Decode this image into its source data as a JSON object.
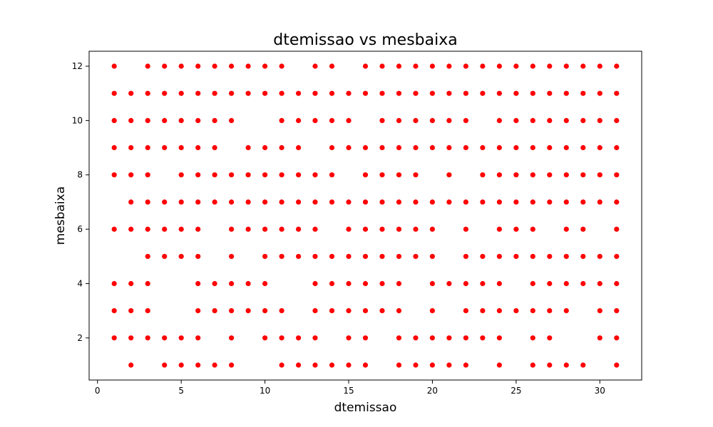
{
  "chart_data": {
    "type": "scatter",
    "title": "dtemissao vs mesbaixa",
    "xlabel": "dtemissao",
    "ylabel": "mesbaixa",
    "xlim": [
      -0.5,
      32.5
    ],
    "ylim": [
      0.45,
      12.55
    ],
    "xticks": [
      0,
      5,
      10,
      15,
      20,
      25,
      30
    ],
    "yticks": [
      2,
      4,
      6,
      8,
      10,
      12
    ],
    "grid": false,
    "marker_color": "#ff0000",
    "rows": [
      {
        "y": 12,
        "x": [
          1,
          3,
          4,
          5,
          6,
          7,
          8,
          9,
          10,
          11,
          13,
          14,
          16,
          17,
          18,
          19,
          20,
          21,
          22,
          23,
          24,
          25,
          26,
          27,
          28,
          29,
          30,
          31
        ]
      },
      {
        "y": 11,
        "x": [
          1,
          2,
          3,
          4,
          5,
          6,
          7,
          8,
          9,
          10,
          11,
          12,
          13,
          14,
          15,
          16,
          17,
          18,
          19,
          20,
          21,
          22,
          23,
          24,
          25,
          26,
          27,
          28,
          29,
          30,
          31
        ]
      },
      {
        "y": 10,
        "x": [
          1,
          2,
          3,
          4,
          5,
          6,
          7,
          8,
          11,
          12,
          13,
          14,
          15,
          17,
          18,
          19,
          20,
          21,
          22,
          24,
          25,
          26,
          27,
          28,
          29,
          30,
          31
        ]
      },
      {
        "y": 9,
        "x": [
          1,
          2,
          3,
          4,
          5,
          6,
          7,
          9,
          10,
          11,
          12,
          14,
          15,
          16,
          17,
          18,
          19,
          20,
          21,
          22,
          23,
          24,
          25,
          26,
          27,
          28,
          29,
          30,
          31
        ]
      },
      {
        "y": 8,
        "x": [
          1,
          2,
          3,
          5,
          6,
          7,
          8,
          9,
          10,
          11,
          12,
          13,
          14,
          16,
          17,
          18,
          19,
          21,
          23,
          24,
          25,
          26,
          27,
          28,
          29,
          30,
          31
        ]
      },
      {
        "y": 7,
        "x": [
          2,
          3,
          4,
          5,
          6,
          7,
          8,
          9,
          10,
          11,
          12,
          13,
          14,
          15,
          16,
          17,
          18,
          19,
          20,
          21,
          22,
          23,
          24,
          25,
          26,
          27,
          28,
          29,
          30,
          31
        ]
      },
      {
        "y": 6,
        "x": [
          1,
          2,
          3,
          4,
          5,
          6,
          8,
          9,
          10,
          11,
          12,
          13,
          15,
          16,
          17,
          18,
          19,
          20,
          22,
          24,
          25,
          26,
          28,
          29,
          31
        ]
      },
      {
        "y": 5,
        "x": [
          3,
          4,
          5,
          6,
          8,
          10,
          11,
          12,
          13,
          14,
          15,
          16,
          17,
          18,
          19,
          20,
          22,
          23,
          24,
          25,
          26,
          27,
          28,
          29,
          30,
          31
        ]
      },
      {
        "y": 4,
        "x": [
          1,
          2,
          3,
          6,
          7,
          8,
          9,
          10,
          13,
          14,
          15,
          16,
          17,
          18,
          20,
          21,
          22,
          23,
          24,
          26,
          27,
          28,
          29,
          30,
          31
        ]
      },
      {
        "y": 3,
        "x": [
          1,
          2,
          3,
          6,
          7,
          8,
          9,
          10,
          11,
          13,
          14,
          15,
          16,
          17,
          18,
          20,
          22,
          23,
          24,
          25,
          26,
          27,
          28,
          30,
          31
        ]
      },
      {
        "y": 2,
        "x": [
          1,
          2,
          3,
          4,
          5,
          6,
          8,
          10,
          11,
          12,
          13,
          15,
          16,
          18,
          19,
          20,
          21,
          22,
          23,
          24,
          26,
          27,
          30,
          31
        ]
      },
      {
        "y": 1,
        "x": [
          2,
          4,
          5,
          6,
          7,
          8,
          11,
          12,
          13,
          14,
          15,
          16,
          18,
          19,
          20,
          21,
          22,
          24,
          26,
          27,
          28,
          29,
          31
        ]
      }
    ]
  }
}
